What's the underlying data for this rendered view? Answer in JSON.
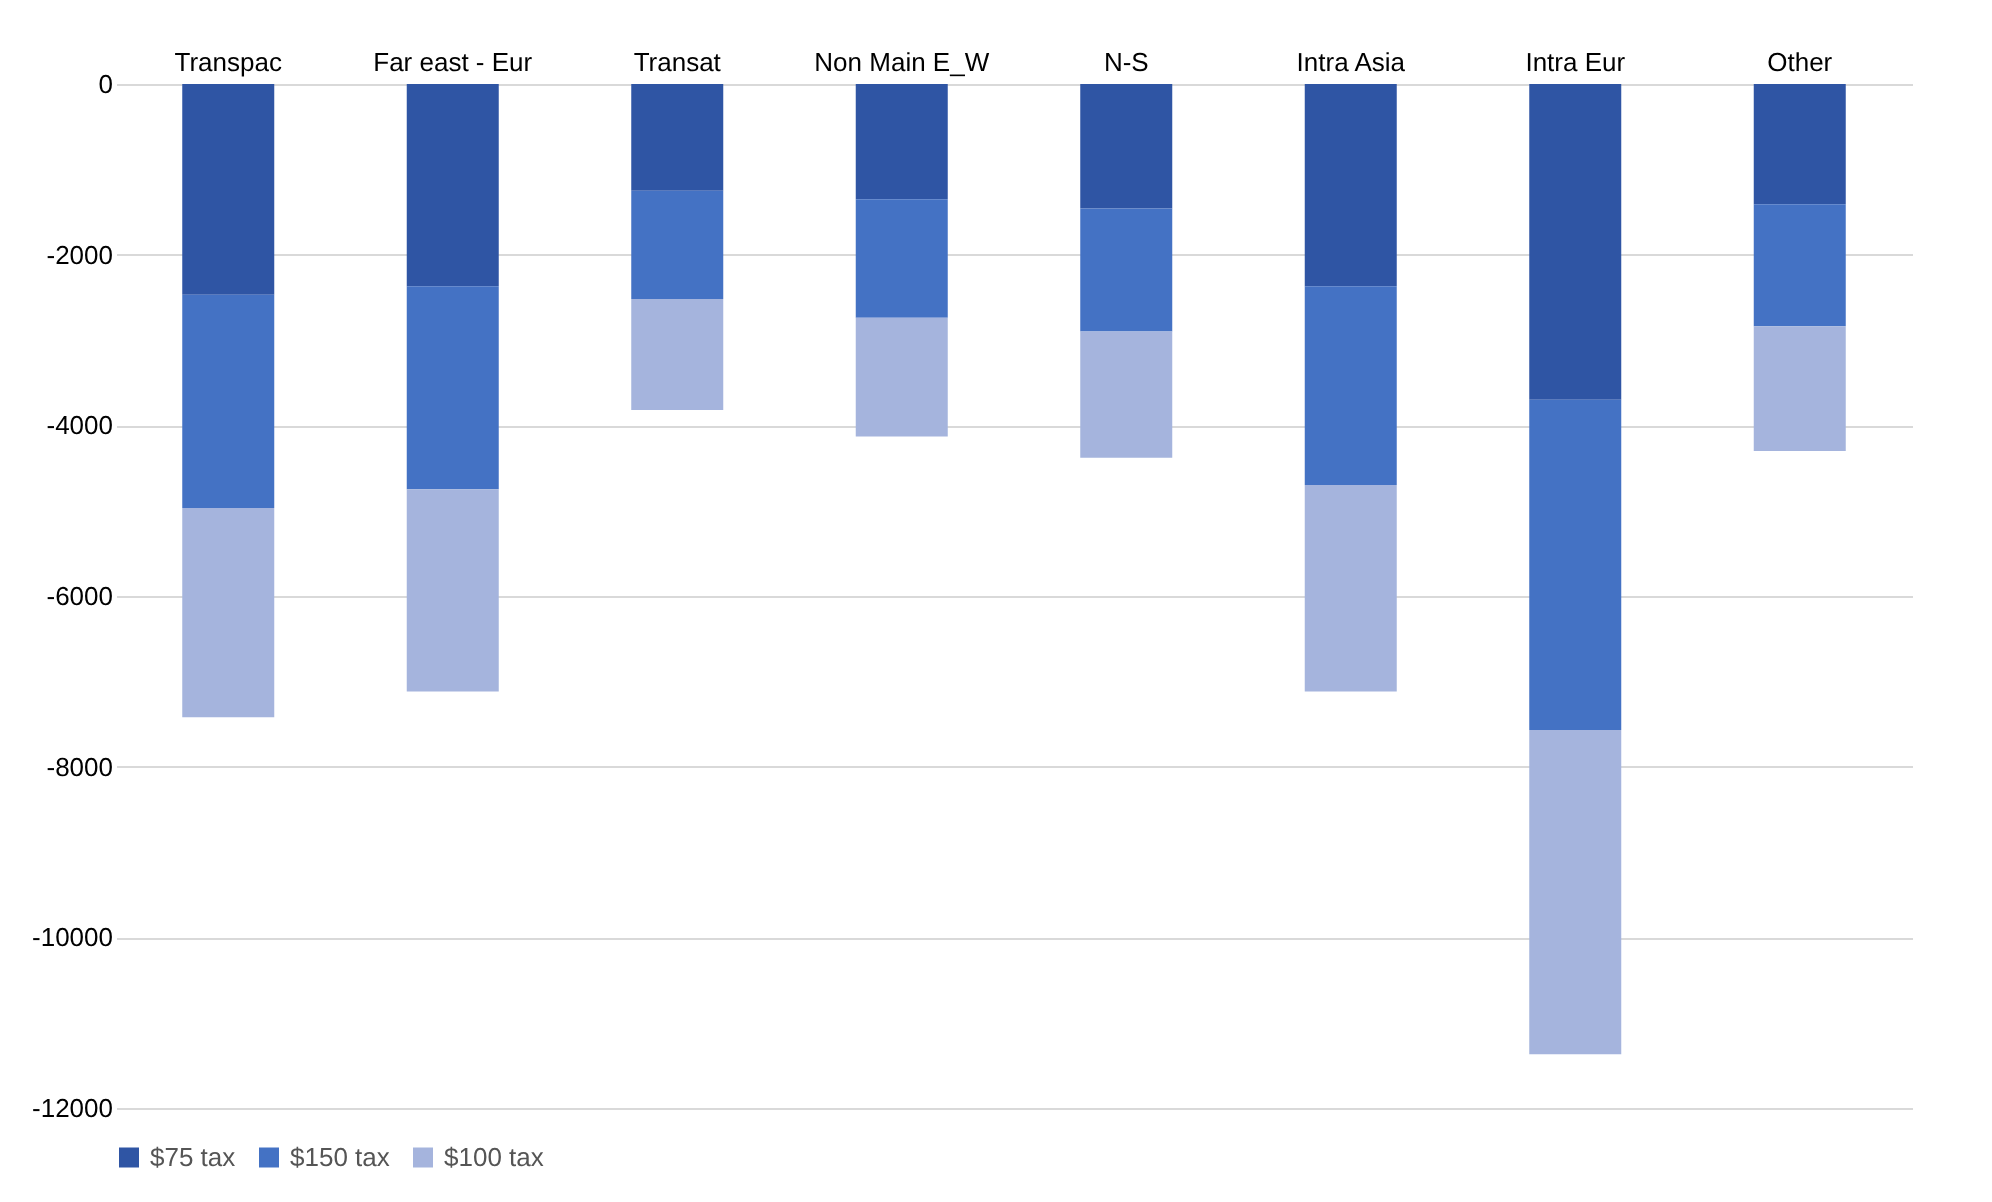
{
  "chart_data": {
    "type": "bar",
    "stacked": true,
    "categories": [
      "Transpac",
      "Far east - Eur",
      "Transat",
      "Non Main E_W",
      "N-S",
      "Intra Asia",
      "Intra Eur",
      "Other"
    ],
    "series": [
      {
        "name": "$75 tax",
        "color": "#2f55a4",
        "values": [
          -2470,
          -2370,
          -1250,
          -1350,
          -1460,
          -2370,
          -3700,
          -1410
        ]
      },
      {
        "name": "$150 tax",
        "color": "#4472c4",
        "values": [
          -2500,
          -2380,
          -1270,
          -1390,
          -1440,
          -2330,
          -3870,
          -1430
        ]
      },
      {
        "name": "$100 tax",
        "color": "#a5b4dd",
        "values": [
          -2450,
          -2370,
          -1300,
          -1390,
          -1480,
          -2420,
          -3800,
          -1460
        ]
      }
    ],
    "ylim": [
      -12000,
      0
    ],
    "yticks": [
      0,
      -2000,
      -4000,
      -6000,
      -8000,
      -10000,
      -12000
    ],
    "grid": "y",
    "legend": "bottom"
  }
}
